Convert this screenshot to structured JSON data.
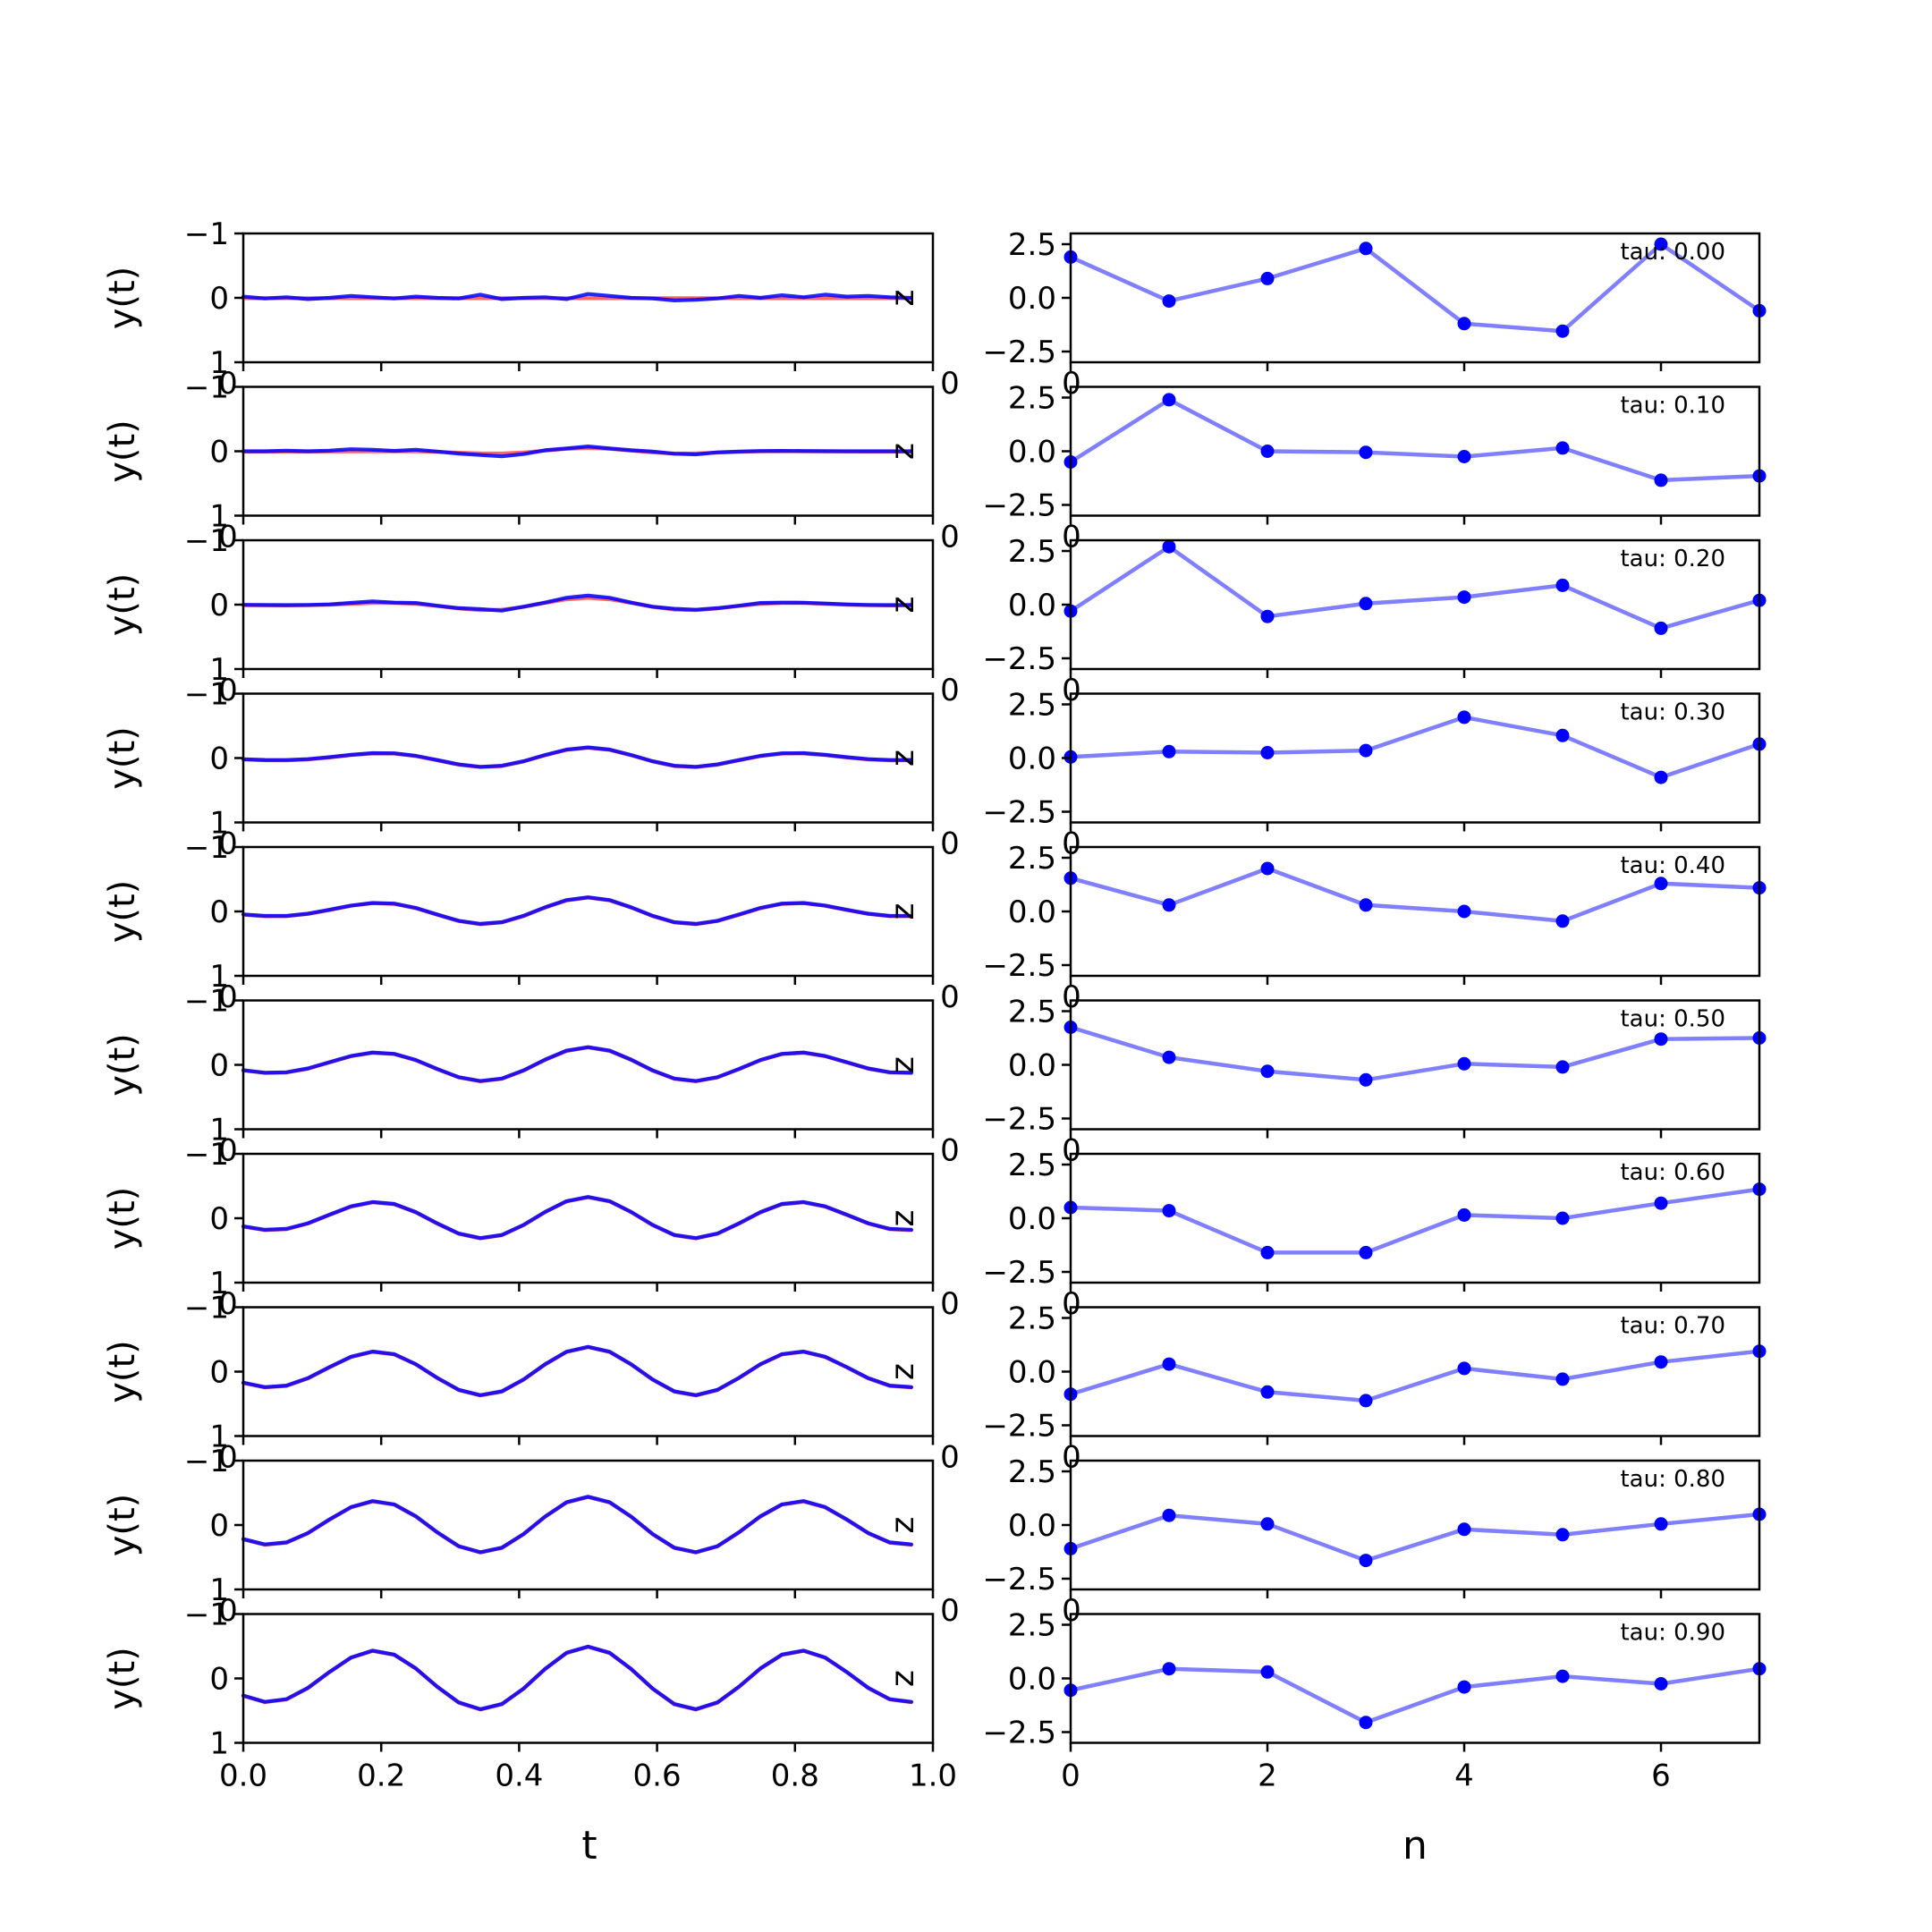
{
  "chart_data": {
    "type": "line",
    "layout": "10 rows x 2 columns of small-multiple panels",
    "left_column": {
      "xlabel": "t",
      "ylabel": "y(t)",
      "xlim": [
        0.0,
        1.0
      ],
      "ylim": [
        -1,
        1
      ],
      "xticks": [
        "0.0",
        "0.2",
        "0.4",
        "0.6",
        "0.8",
        "1.0"
      ],
      "yticks": [
        "−1",
        "0",
        "1"
      ],
      "t": [
        0.0,
        0.03125,
        0.0625,
        0.09375,
        0.125,
        0.15625,
        0.1875,
        0.21875,
        0.25,
        0.28125,
        0.3125,
        0.34375,
        0.375,
        0.40625,
        0.4375,
        0.46875,
        0.5,
        0.53125,
        0.5625,
        0.59375,
        0.625,
        0.65625,
        0.6875,
        0.71875,
        0.75,
        0.78125,
        0.8125,
        0.84375,
        0.875,
        0.90625,
        0.9375,
        0.96875
      ],
      "series_colors": [
        "#ff0000",
        "#0000ff"
      ],
      "series_opacity": [
        0.6,
        0.85
      ],
      "edge_glyph": "z",
      "stray_tick_labels": [
        "0",
        "0",
        "0"
      ]
    },
    "right_column": {
      "xlabel": "n",
      "xlim": [
        0,
        7
      ],
      "ylim": [
        -3.0,
        3.0
      ],
      "xticks": [
        "0",
        "2",
        "4",
        "6"
      ],
      "yticks": [
        "2.5",
        "0.0",
        "−2.5"
      ],
      "color": "#0000ff",
      "line_opacity": 0.5,
      "marker": "circle"
    },
    "panels": [
      {
        "tau_label": "tau: 0.00",
        "n_values": [
          1.9,
          -0.15,
          0.9,
          2.3,
          -1.2,
          -1.55,
          2.5,
          -0.6
        ],
        "left": {
          "amp": 0.0,
          "noise": [
            0.02,
            -0.01,
            0.01,
            -0.02,
            0.0,
            0.03,
            0.01,
            -0.01,
            0.02,
            0.0,
            -0.01,
            0.05,
            -0.02,
            0.0,
            0.01,
            -0.02,
            0.06,
            0.03,
            0.0,
            -0.01,
            -0.04,
            -0.03,
            -0.01,
            0.03,
            0.0,
            0.04,
            0.01,
            0.05,
            0.02,
            0.03,
            0.01,
            0.0
          ]
        }
      },
      {
        "tau_label": "tau: 0.10",
        "n_values": [
          -0.5,
          2.4,
          0.0,
          -0.05,
          -0.25,
          0.15,
          -1.35,
          -1.15
        ],
        "left": {
          "amp": 0.1,
          "noise": [
            0.0,
            0.0,
            0.01,
            0.0,
            0.01,
            0.03,
            0.02,
            0.0,
            0.02,
            0.0,
            -0.02,
            -0.03,
            -0.05,
            -0.03,
            0.0,
            0.0,
            0.02,
            0.0,
            0.0,
            0.01,
            -0.01,
            -0.02,
            0.0,
            0.0,
            0.0,
            0.0,
            0.0,
            0.0,
            0.0,
            0.0,
            0.0,
            0.0
          ]
        }
      },
      {
        "tau_label": "tau: 0.20",
        "n_values": [
          -0.3,
          2.7,
          -0.55,
          0.05,
          0.35,
          0.9,
          -1.1,
          0.2
        ],
        "left": {
          "amp": 0.2,
          "noise": [
            0.0,
            0.0,
            0.0,
            0.0,
            0.0,
            0.01,
            0.02,
            0.0,
            0.01,
            0.0,
            0.0,
            0.01,
            -0.02,
            0.0,
            0.0,
            0.02,
            0.03,
            0.02,
            0.0,
            0.0,
            0.01,
            0.0,
            0.0,
            0.0,
            0.01,
            0.0,
            0.0,
            0.0,
            0.0,
            0.0,
            0.0,
            0.0
          ]
        }
      },
      {
        "tau_label": "tau: 0.30",
        "n_values": [
          0.05,
          0.3,
          0.25,
          0.35,
          1.9,
          1.05,
          -0.9,
          0.65
        ],
        "left": {
          "amp": 0.3,
          "noise": [
            0.0,
            0.0,
            0.0,
            0.0,
            0.0,
            0.0,
            0.0,
            0.0,
            0.0,
            0.0,
            0.0,
            0.0,
            0.0,
            0.0,
            0.0,
            0.0,
            0.0,
            0.0,
            0.0,
            0.0,
            0.0,
            0.0,
            0.0,
            0.0,
            0.0,
            0.0,
            0.0,
            0.0,
            0.0,
            0.0,
            0.0,
            0.0
          ]
        }
      },
      {
        "tau_label": "tau: 0.40",
        "n_values": [
          1.55,
          0.3,
          2.0,
          0.3,
          0.0,
          -0.45,
          1.3,
          1.1
        ],
        "left": {
          "amp": 0.4,
          "noise": [
            0.0,
            0.0,
            0.0,
            0.0,
            0.0,
            0.0,
            0.0,
            0.0,
            0.0,
            0.0,
            0.0,
            0.0,
            0.0,
            0.0,
            0.0,
            0.0,
            0.0,
            0.0,
            0.0,
            0.0,
            0.0,
            0.0,
            0.0,
            0.0,
            0.0,
            0.0,
            0.0,
            0.0,
            0.0,
            0.0,
            0.0,
            0.0
          ]
        }
      },
      {
        "tau_label": "tau: 0.50",
        "n_values": [
          1.75,
          0.35,
          -0.3,
          -0.7,
          0.05,
          -0.1,
          1.2,
          1.25
        ],
        "left": {
          "amp": 0.5,
          "noise": [
            0.0,
            0.0,
            0.0,
            0.0,
            0.0,
            0.0,
            0.0,
            0.0,
            0.0,
            0.0,
            0.0,
            0.0,
            0.0,
            0.0,
            0.0,
            0.0,
            0.0,
            0.0,
            0.0,
            0.0,
            0.0,
            0.0,
            0.0,
            0.0,
            0.0,
            0.0,
            0.0,
            0.0,
            0.0,
            0.0,
            0.0,
            0.0
          ]
        }
      },
      {
        "tau_label": "tau: 0.60",
        "n_values": [
          0.5,
          0.35,
          -1.6,
          -1.6,
          0.15,
          0.0,
          0.7,
          1.35
        ],
        "left": {
          "amp": 0.6,
          "noise": [
            0.0,
            0.0,
            0.0,
            0.0,
            0.0,
            0.0,
            0.0,
            0.0,
            0.0,
            0.0,
            0.0,
            0.0,
            0.0,
            0.0,
            0.0,
            0.0,
            0.0,
            0.0,
            0.0,
            0.0,
            0.0,
            0.0,
            0.0,
            0.0,
            0.0,
            0.0,
            0.0,
            0.0,
            0.0,
            0.0,
            0.0,
            0.0
          ]
        }
      },
      {
        "tau_label": "tau: 0.70",
        "n_values": [
          -1.05,
          0.35,
          -0.95,
          -1.35,
          0.15,
          -0.35,
          0.45,
          0.95
        ],
        "left": {
          "amp": 0.7,
          "noise": [
            0.0,
            0.0,
            0.0,
            0.0,
            0.0,
            0.0,
            0.0,
            0.0,
            0.0,
            0.0,
            0.0,
            0.0,
            0.0,
            0.0,
            0.0,
            0.0,
            0.0,
            0.0,
            0.0,
            0.0,
            0.0,
            0.0,
            0.0,
            0.0,
            0.0,
            0.0,
            0.0,
            0.0,
            0.0,
            0.0,
            0.0,
            0.0
          ]
        }
      },
      {
        "tau_label": "tau: 0.80",
        "n_values": [
          -1.1,
          0.45,
          0.05,
          -1.65,
          -0.2,
          -0.45,
          0.05,
          0.5
        ],
        "left": {
          "amp": 0.8,
          "noise": [
            0.0,
            0.0,
            0.0,
            0.0,
            0.0,
            0.0,
            0.0,
            0.0,
            0.0,
            0.0,
            0.0,
            0.0,
            0.0,
            0.0,
            0.0,
            0.0,
            0.0,
            0.0,
            0.0,
            0.0,
            0.0,
            0.0,
            0.0,
            0.0,
            0.0,
            0.0,
            0.0,
            0.0,
            0.0,
            0.0,
            0.0,
            0.0
          ]
        }
      },
      {
        "tau_label": "tau: 0.90",
        "n_values": [
          -0.55,
          0.45,
          0.3,
          -2.05,
          -0.4,
          0.1,
          -0.25,
          0.45
        ],
        "left": {
          "amp": 0.9,
          "noise": [
            0.0,
            0.0,
            0.0,
            0.0,
            0.0,
            0.0,
            0.0,
            0.0,
            0.0,
            0.0,
            0.0,
            0.0,
            0.0,
            0.0,
            0.0,
            0.0,
            0.0,
            0.0,
            0.0,
            0.0,
            0.0,
            0.0,
            0.0,
            0.0,
            0.0,
            0.0,
            0.0,
            0.0,
            0.0,
            0.0,
            0.0,
            0.0
          ]
        }
      }
    ]
  }
}
